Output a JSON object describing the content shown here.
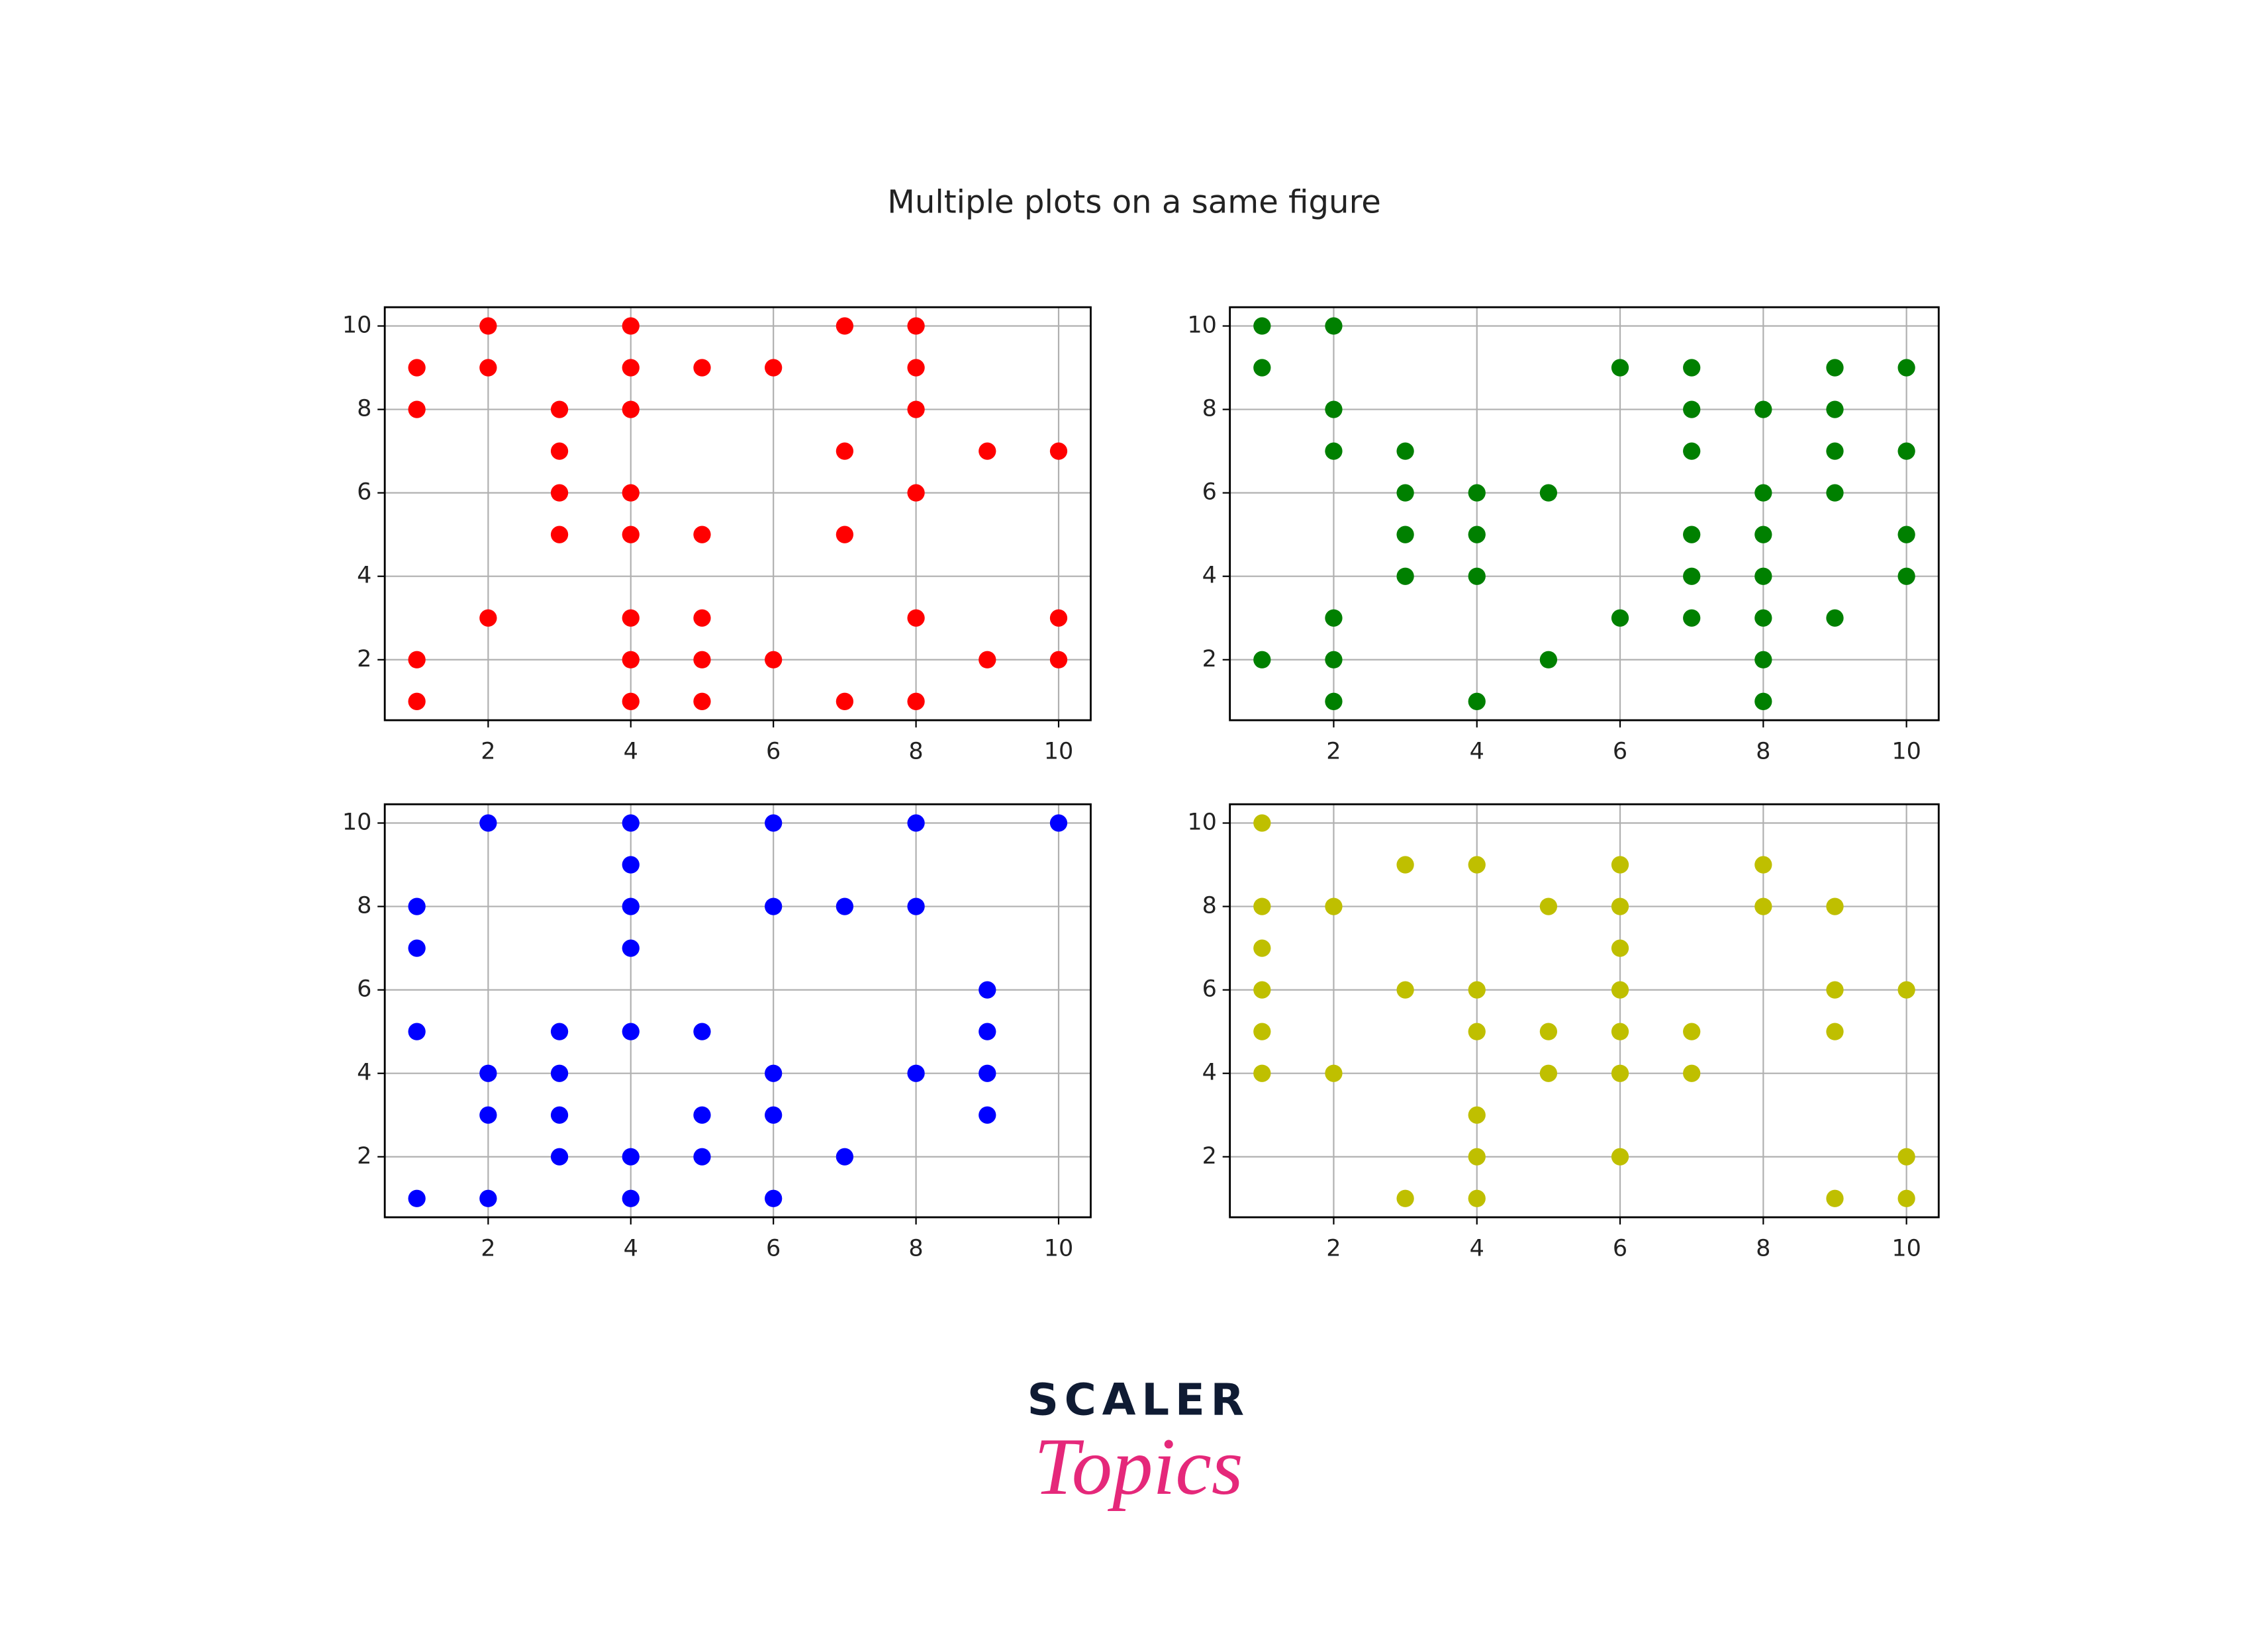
{
  "title": "Multiple plots on a same figure",
  "logo": {
    "brand": "SCALER",
    "sub": "Topics"
  },
  "chart_data": [
    {
      "type": "scatter",
      "color": "#ff0000",
      "grid": true,
      "xlim": [
        0.55,
        10.45
      ],
      "ylim": [
        0.55,
        10.45
      ],
      "xticks": [
        2,
        4,
        6,
        8,
        10
      ],
      "yticks": [
        2,
        4,
        6,
        8,
        10
      ],
      "x": [
        1,
        1,
        1,
        1,
        2,
        2,
        2,
        3,
        3,
        3,
        3,
        4,
        4,
        4,
        4,
        4,
        4,
        4,
        4,
        5,
        5,
        5,
        5,
        5,
        6,
        6,
        7,
        7,
        7,
        7,
        8,
        8,
        8,
        8,
        8,
        8,
        9,
        9,
        10,
        10,
        10
      ],
      "y": [
        9,
        8,
        2,
        1,
        10,
        9,
        3,
        8,
        7,
        6,
        5,
        10,
        9,
        8,
        6,
        5,
        3,
        2,
        1,
        9,
        5,
        3,
        2,
        1,
        9,
        2,
        10,
        7,
        5,
        1,
        10,
        9,
        8,
        6,
        3,
        1,
        7,
        2,
        7,
        3,
        2
      ]
    },
    {
      "type": "scatter",
      "color": "#008000",
      "grid": true,
      "xlim": [
        0.55,
        10.45
      ],
      "ylim": [
        0.55,
        10.45
      ],
      "xticks": [
        2,
        4,
        6,
        8,
        10
      ],
      "yticks": [
        2,
        4,
        6,
        8,
        10
      ],
      "x": [
        1,
        1,
        1,
        2,
        2,
        2,
        2,
        2,
        2,
        3,
        3,
        3,
        3,
        4,
        4,
        4,
        4,
        5,
        5,
        6,
        6,
        7,
        7,
        7,
        7,
        7,
        7,
        8,
        8,
        8,
        8,
        8,
        8,
        8,
        9,
        9,
        9,
        9,
        9,
        10,
        10,
        10,
        10
      ],
      "y": [
        10,
        9,
        2,
        10,
        8,
        7,
        3,
        2,
        1,
        7,
        6,
        5,
        4,
        6,
        5,
        4,
        1,
        6,
        2,
        9,
        3,
        9,
        8,
        7,
        5,
        4,
        3,
        8,
        6,
        5,
        4,
        3,
        2,
        1,
        9,
        8,
        7,
        6,
        3,
        9,
        7,
        5,
        4
      ]
    },
    {
      "type": "scatter",
      "color": "#0000ff",
      "grid": true,
      "xlim": [
        0.55,
        10.45
      ],
      "ylim": [
        0.55,
        10.45
      ],
      "xticks": [
        2,
        4,
        6,
        8,
        10
      ],
      "yticks": [
        2,
        4,
        6,
        8,
        10
      ],
      "x": [
        1,
        1,
        1,
        1,
        2,
        2,
        2,
        2,
        3,
        3,
        3,
        3,
        4,
        4,
        4,
        4,
        4,
        4,
        4,
        5,
        5,
        5,
        6,
        6,
        6,
        6,
        6,
        7,
        7,
        8,
        8,
        8,
        9,
        9,
        9,
        9,
        10
      ],
      "y": [
        8,
        7,
        5,
        1,
        10,
        4,
        3,
        1,
        5,
        4,
        3,
        2,
        10,
        9,
        8,
        7,
        5,
        2,
        1,
        5,
        3,
        2,
        10,
        8,
        4,
        3,
        1,
        8,
        2,
        10,
        8,
        4,
        6,
        5,
        4,
        3,
        10
      ]
    },
    {
      "type": "scatter",
      "color": "#bfbf00",
      "grid": true,
      "xlim": [
        0.55,
        10.45
      ],
      "ylim": [
        0.55,
        10.45
      ],
      "xticks": [
        2,
        4,
        6,
        8,
        10
      ],
      "yticks": [
        2,
        4,
        6,
        8,
        10
      ],
      "x": [
        1,
        1,
        1,
        1,
        1,
        1,
        2,
        2,
        3,
        3,
        3,
        4,
        4,
        4,
        4,
        4,
        4,
        5,
        5,
        5,
        6,
        6,
        6,
        6,
        6,
        6,
        6,
        7,
        7,
        8,
        8,
        9,
        9,
        9,
        9,
        10,
        10,
        10
      ],
      "y": [
        10,
        8,
        7,
        6,
        5,
        4,
        8,
        4,
        9,
        6,
        1,
        9,
        6,
        5,
        3,
        2,
        1,
        8,
        5,
        4,
        9,
        8,
        7,
        6,
        5,
        4,
        2,
        5,
        4,
        9,
        8,
        8,
        6,
        5,
        1,
        6,
        2,
        1
      ]
    }
  ]
}
